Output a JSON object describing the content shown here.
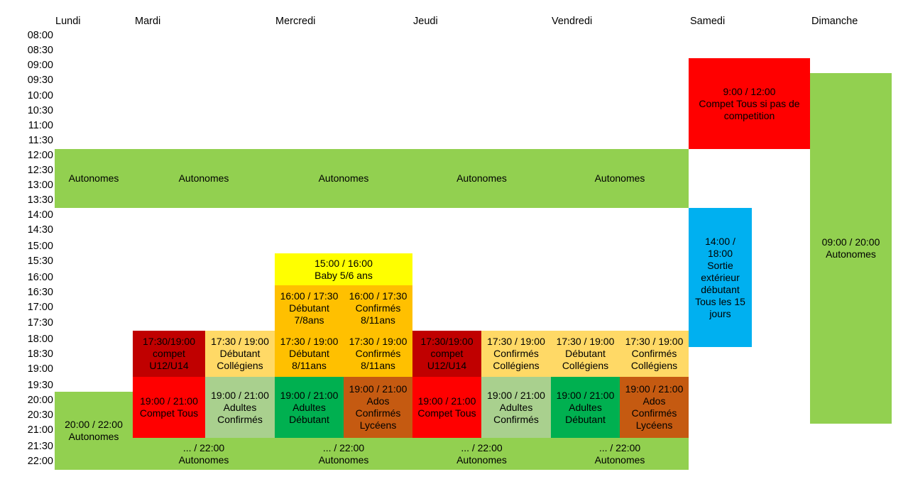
{
  "days": [
    "Lundi",
    "Mardi",
    "Mercredi",
    "Jeudi",
    "Vendredi",
    "Samedi",
    "Dimanche"
  ],
  "times": [
    "08:00",
    "08:30",
    "09:00",
    "09:30",
    "10:00",
    "10:30",
    "11:00",
    "11:30",
    "12:00",
    "12:30",
    "13:00",
    "13:30",
    "14:00",
    "14:30",
    "15:00",
    "15:30",
    "16:00",
    "16:30",
    "17:00",
    "17:30",
    "18:00",
    "18:30",
    "19:00",
    "19:30",
    "20:00",
    "20:30",
    "21:00",
    "21:30",
    "22:00"
  ],
  "colors": {
    "green": "#92d050",
    "red": "#ff0000",
    "darkred": "#c00000",
    "yellow": "#ffff00",
    "orange": "#ffc000",
    "lightorange": "#ffd966",
    "lightgreen": "#a9d08e",
    "darkgreen": "#00b050",
    "brown": "#c55a11",
    "blue": "#00b0f0"
  },
  "blocks": {
    "autonomes_noon": {
      "lundi": "Autonomes",
      "mardi": "Autonomes",
      "mercredi": "Autonomes",
      "jeudi": "Autonomes",
      "vendredi": "Autonomes"
    },
    "samedi_matin": [
      "9:00 / 12:00",
      "Compet Tous si pas de",
      "competition"
    ],
    "samedi_aprem": [
      "14:00 /",
      "18:00",
      "Sortie",
      "extérieur",
      "débutant",
      "Tous les 15",
      "jours"
    ],
    "dimanche": [
      "09:00 / 20:00",
      "Autonomes"
    ],
    "baby": [
      "15:00 / 16:00",
      "Baby 5/6 ans"
    ],
    "merc_debutant_7_8": [
      "16:00 / 17:30",
      "Débutant",
      "7/8ans"
    ],
    "merc_confirmes_8_11_a": [
      "16:00 / 17:30",
      "Confirmés",
      "8/11ans"
    ],
    "mardi_compet_u12": [
      "17:30/19:00",
      "compet",
      "U12/U14"
    ],
    "mardi_deb_college": [
      "17:30 / 19:00",
      "Débutant",
      "Collégiens"
    ],
    "merc_debutant_8_11": [
      "17:30 / 19:00",
      "Débutant",
      "8/11ans"
    ],
    "merc_confirmes_8_11_b": [
      "17:30 / 19:00",
      "Confirmés",
      "8/11ans"
    ],
    "jeudi_compet_u12": [
      "17:30/19:00",
      "compet",
      "U12/U14"
    ],
    "jeudi_conf_college": [
      "17:30 / 19:00",
      "Confirmés",
      "Collégiens"
    ],
    "vend_deb_college": [
      "17:30 / 19:00",
      "Débutant",
      "Collégiens"
    ],
    "vend_conf_college": [
      "17:30 / 19:00",
      "Confirmés",
      "Collégiens"
    ],
    "lundi_soir": [
      "20:00 / 22:00",
      "Autonomes"
    ],
    "mardi_compet_tous": [
      "19:00 / 21:00",
      "Compet Tous"
    ],
    "mardi_adultes_conf": [
      "19:00 / 21:00",
      "Adultes",
      "Confirmés"
    ],
    "merc_adultes_deb": [
      "19:00 / 21:00",
      "Adultes",
      "Débutant"
    ],
    "merc_ados_lycee": [
      "19:00 / 21:00",
      "Ados",
      "Confirmés",
      "Lycéens"
    ],
    "jeudi_compet_tous": [
      "19:00 / 21:00",
      "Compet Tous"
    ],
    "jeudi_adultes_conf": [
      "19:00 / 21:00",
      "Adultes",
      "Confirmés"
    ],
    "vend_adultes_deb": [
      "19:00 / 21:00",
      "Adultes",
      "Débutant"
    ],
    "vend_ados_lycee": [
      "19:00 / 21:00",
      "Ados",
      "Confirmés",
      "Lycéens"
    ],
    "mardi_late": [
      "... / 22:00",
      "Autonomes"
    ],
    "merc_late": [
      "... / 22:00",
      "Autonomes"
    ],
    "jeudi_late": [
      "... / 22:00",
      "Autonomes"
    ],
    "vend_late": [
      "... / 22:00",
      "Autonomes"
    ]
  }
}
